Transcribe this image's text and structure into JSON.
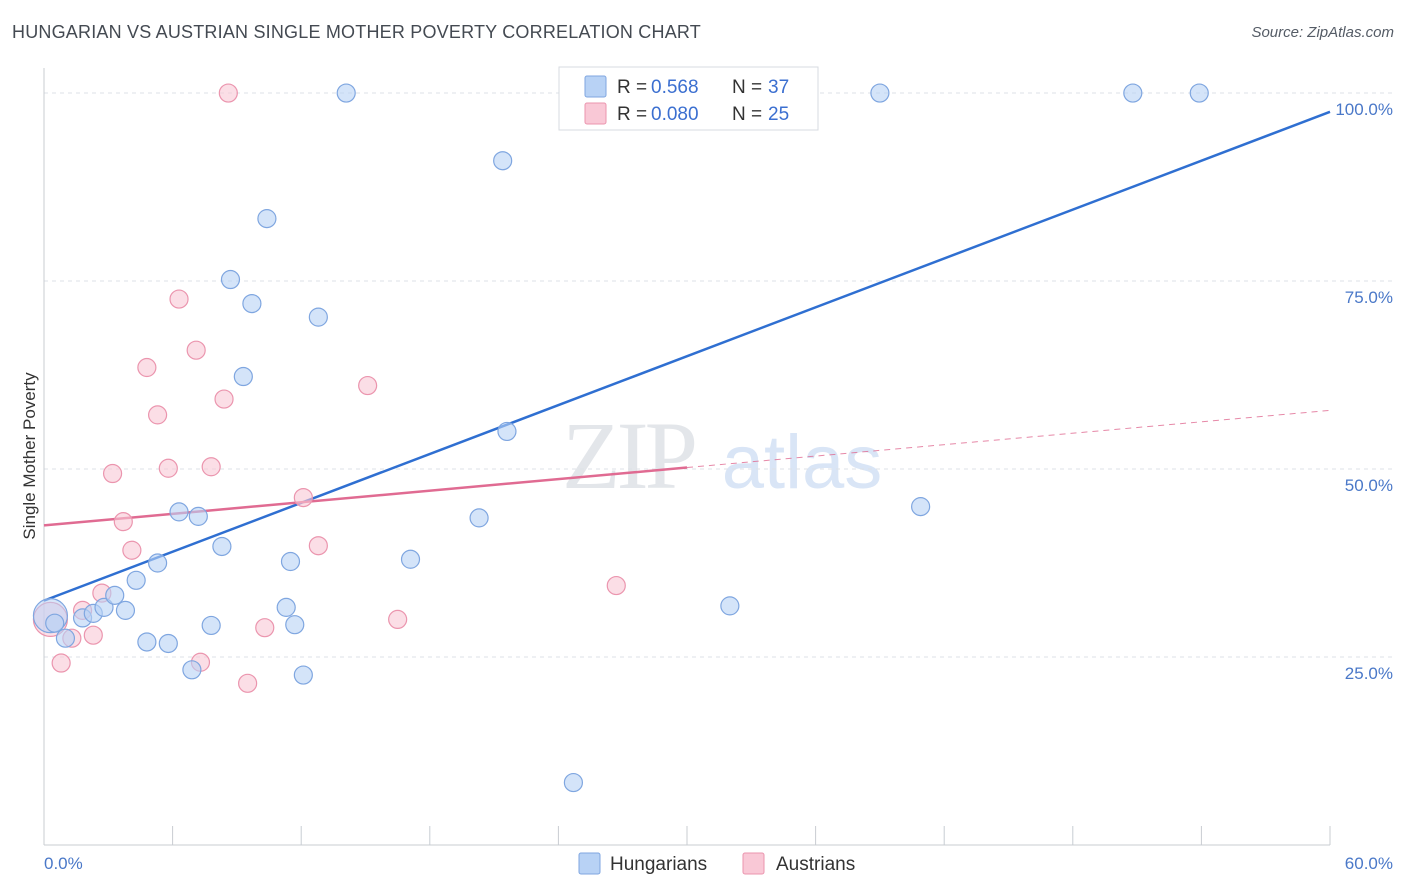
{
  "title": "HUNGARIAN VS AUSTRIAN SINGLE MOTHER POVERTY CORRELATION CHART",
  "source": "Source: ZipAtlas.com",
  "watermark": {
    "zip": "ZIP",
    "atlas": "atlas"
  },
  "colors": {
    "hungarians_fill": "#b8d2f5",
    "hungarians_stroke": "#7fa6e0",
    "hungarians_line": "#2f6fd1",
    "austrians_fill": "#f9c8d6",
    "austrians_stroke": "#eb95ae",
    "austrians_line": "#e06b92",
    "axis_text": "#4a78c8",
    "grid": "#dde1e7"
  },
  "legend": {
    "rows": [
      {
        "r_label": "R = ",
        "r_value": "0.568",
        "n_label": "N = ",
        "n_value": "37"
      },
      {
        "r_label": "R = ",
        "r_value": "0.080",
        "n_label": "N = ",
        "n_value": "25"
      }
    ]
  },
  "chart_data": {
    "type": "scatter",
    "title": "HUNGARIAN VS AUSTRIAN SINGLE MOTHER POVERTY CORRELATION CHART",
    "xlabel": "",
    "ylabel": "Single Mother Poverty",
    "xlim": [
      0,
      60
    ],
    "ylim": [
      0,
      102
    ],
    "x_tick_labels": [
      "0.0%",
      "60.0%"
    ],
    "y_ticks": [
      25,
      50,
      75,
      100
    ],
    "y_tick_labels": [
      "25.0%",
      "50.0%",
      "75.0%",
      "100.0%"
    ],
    "grid": true,
    "legend_position": "top-center",
    "series": [
      {
        "name": "Hungarians",
        "r": 0.568,
        "n": 37,
        "points": [
          [
            0.3,
            30.5
          ],
          [
            1.0,
            27.5
          ],
          [
            1.8,
            30.2
          ],
          [
            2.3,
            30.8
          ],
          [
            2.8,
            31.6
          ],
          [
            3.3,
            33.2
          ],
          [
            3.8,
            31.2
          ],
          [
            4.3,
            35.2
          ],
          [
            4.8,
            27.0
          ],
          [
            5.3,
            37.5
          ],
          [
            5.8,
            26.8
          ],
          [
            6.3,
            44.3
          ],
          [
            6.9,
            23.3
          ],
          [
            7.2,
            43.7
          ],
          [
            7.8,
            29.2
          ],
          [
            8.3,
            39.7
          ],
          [
            8.7,
            75.2
          ],
          [
            9.3,
            62.3
          ],
          [
            9.7,
            72.0
          ],
          [
            10.4,
            83.3
          ],
          [
            11.3,
            31.6
          ],
          [
            11.5,
            37.7
          ],
          [
            11.7,
            29.3
          ],
          [
            12.1,
            22.6
          ],
          [
            12.8,
            70.2
          ],
          [
            14.1,
            100
          ],
          [
            17.1,
            38.0
          ],
          [
            20.3,
            43.5
          ],
          [
            21.4,
            91.0
          ],
          [
            21.6,
            55.0
          ],
          [
            24.7,
            8.3
          ],
          [
            32.0,
            31.8
          ],
          [
            39.0,
            100
          ],
          [
            40.9,
            45.0
          ],
          [
            50.8,
            100
          ],
          [
            53.9,
            100
          ],
          [
            0.5,
            29.5
          ]
        ],
        "trend": {
          "x": [
            0,
            60
          ],
          "y": [
            32.5,
            97.5
          ]
        }
      },
      {
        "name": "Austrians",
        "r": 0.08,
        "n": 25,
        "points": [
          [
            0.3,
            30.0
          ],
          [
            0.8,
            24.2
          ],
          [
            1.3,
            27.5
          ],
          [
            1.8,
            31.2
          ],
          [
            2.3,
            27.9
          ],
          [
            2.7,
            33.5
          ],
          [
            3.2,
            49.4
          ],
          [
            3.7,
            43.0
          ],
          [
            4.1,
            39.2
          ],
          [
            4.8,
            63.5
          ],
          [
            5.3,
            57.2
          ],
          [
            5.8,
            50.1
          ],
          [
            6.3,
            72.6
          ],
          [
            7.1,
            65.8
          ],
          [
            7.3,
            24.3
          ],
          [
            7.8,
            50.3
          ],
          [
            8.4,
            59.3
          ],
          [
            8.6,
            100
          ],
          [
            9.5,
            21.5
          ],
          [
            10.3,
            28.9
          ],
          [
            12.1,
            46.2
          ],
          [
            12.8,
            39.8
          ],
          [
            15.1,
            61.1
          ],
          [
            16.5,
            30.0
          ],
          [
            26.7,
            34.5
          ]
        ],
        "trend": {
          "x": [
            0,
            30
          ],
          "y": [
            42.5,
            50.2
          ]
        },
        "trend_extension": {
          "x": [
            30,
            60
          ],
          "y": [
            50.2,
            57.8
          ]
        }
      }
    ]
  }
}
